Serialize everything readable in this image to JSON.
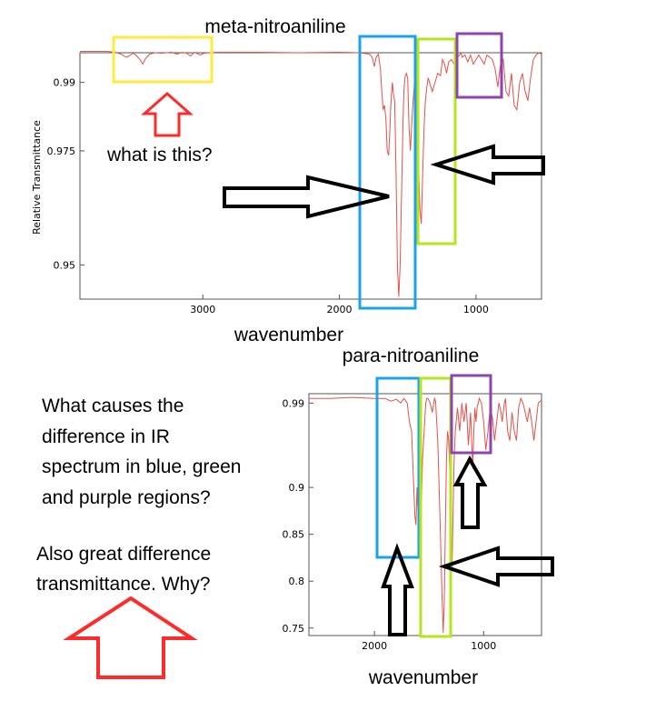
{
  "chart_data": [
    {
      "type": "line",
      "title": "meta-nitroaniline",
      "xlabel": "wavenumber",
      "ylabel": "Relative Transmittance",
      "xlim": [
        3900,
        520
      ],
      "ylim": [
        0.9425,
        0.9965
      ],
      "x_reversed": true,
      "xticks": [
        3000,
        2000,
        1000
      ],
      "yticks": [
        0.95,
        0.975,
        0.99
      ],
      "ytick_labels": [
        "0.95",
        "0.975",
        "0.99"
      ],
      "grid": false,
      "series": [
        {
          "color": "#e8504a",
          "x": [
            3900,
            3700,
            3640,
            3600,
            3560,
            3540,
            3510,
            3490,
            3460,
            3440,
            3420,
            3390,
            3350,
            3300,
            3230,
            3190,
            3150,
            3120,
            3090,
            3060,
            3020,
            2990,
            2900,
            2600,
            2300,
            2000,
            1860,
            1780,
            1760,
            1745,
            1730,
            1715,
            1700,
            1690,
            1680,
            1670,
            1660,
            1650,
            1640,
            1630,
            1625,
            1620,
            1612,
            1605,
            1595,
            1585,
            1575,
            1565,
            1555,
            1545,
            1535,
            1528,
            1520,
            1510,
            1500,
            1490,
            1480,
            1470,
            1460,
            1450,
            1440,
            1430,
            1420,
            1410,
            1400,
            1390,
            1380,
            1370,
            1360,
            1350,
            1340,
            1320,
            1300,
            1280,
            1260,
            1245,
            1230,
            1215,
            1200,
            1180,
            1160,
            1140,
            1120,
            1110,
            1100,
            1080,
            1060,
            1040,
            1020,
            1000,
            980,
            960,
            940,
            920,
            900,
            880,
            860,
            840,
            820,
            800,
            780,
            760,
            740,
            720,
            700,
            680,
            660,
            640,
            620,
            600,
            580,
            560,
            540,
            520
          ],
          "y": [
            0.9968,
            0.9968,
            0.9966,
            0.9962,
            0.9955,
            0.9958,
            0.9964,
            0.996,
            0.995,
            0.994,
            0.9952,
            0.9962,
            0.9965,
            0.9964,
            0.9966,
            0.9962,
            0.9966,
            0.9964,
            0.9958,
            0.9966,
            0.996,
            0.9964,
            0.9966,
            0.9966,
            0.9965,
            0.9966,
            0.9965,
            0.9962,
            0.9955,
            0.9935,
            0.9955,
            0.9962,
            0.993,
            0.988,
            0.984,
            0.985,
            0.982,
            0.975,
            0.974,
            0.98,
            0.984,
            0.987,
            0.99,
            0.9875,
            0.986,
            0.97,
            0.95,
            0.943,
            0.95,
            0.965,
            0.98,
            0.988,
            0.991,
            0.992,
            0.991,
            0.98,
            0.975,
            0.981,
            0.986,
            0.99,
            0.987,
            0.982,
            0.972,
            0.962,
            0.959,
            0.97,
            0.98,
            0.986,
            0.989,
            0.991,
            0.99,
            0.988,
            0.99,
            0.992,
            0.9915,
            0.995,
            0.994,
            0.992,
            0.9945,
            0.995,
            0.994,
            0.9955,
            0.996,
            0.9965,
            0.9955,
            0.996,
            0.9945,
            0.996,
            0.994,
            0.995,
            0.996,
            0.995,
            0.994,
            0.996,
            0.9955,
            0.995,
            0.993,
            0.989,
            0.994,
            0.995,
            0.988,
            0.987,
            0.992,
            0.985,
            0.984,
            0.99,
            0.992,
            0.988,
            0.986,
            0.991,
            0.995,
            0.996,
            0.9965,
            0.9962
          ]
        }
      ]
    },
    {
      "type": "line",
      "title": "para-nitroaniline",
      "xlabel": "wavenumber",
      "ylabel": "",
      "xlim": [
        2600,
        470
      ],
      "ylim": [
        0.742,
        1.0
      ],
      "x_reversed": true,
      "xticks": [
        2000,
        1000
      ],
      "yticks": [
        0.75,
        0.8,
        0.85,
        0.9,
        0.99
      ],
      "ytick_labels": [
        "0.75",
        "0.8",
        "0.85",
        "0.9",
        "0.99"
      ],
      "grid": false,
      "series": [
        {
          "color": "#e8504a",
          "x": [
            2600,
            2400,
            2200,
            2000,
            1900,
            1850,
            1800,
            1760,
            1730,
            1700,
            1680,
            1660,
            1650,
            1640,
            1630,
            1620,
            1610,
            1600,
            1590,
            1580,
            1570,
            1560,
            1550,
            1540,
            1530,
            1520,
            1510,
            1490,
            1470,
            1450,
            1440,
            1420,
            1400,
            1380,
            1370,
            1360,
            1350,
            1340,
            1330,
            1320,
            1310,
            1300,
            1290,
            1280,
            1270,
            1260,
            1240,
            1220,
            1200,
            1180,
            1160,
            1140,
            1120,
            1110,
            1100,
            1090,
            1080,
            1070,
            1060,
            1040,
            1020,
            1000,
            980,
            960,
            940,
            920,
            900,
            880,
            860,
            840,
            830,
            820,
            810,
            800,
            780,
            760,
            740,
            720,
            700,
            680,
            660,
            640,
            620,
            600,
            580,
            560,
            540,
            520,
            500,
            470
          ],
          "y": [
            0.995,
            0.995,
            0.996,
            0.995,
            0.995,
            0.992,
            0.994,
            0.99,
            0.995,
            0.99,
            0.97,
            0.96,
            0.93,
            0.9,
            0.87,
            0.86,
            0.9,
            0.87,
            0.84,
            0.85,
            0.88,
            0.93,
            0.95,
            0.97,
            0.99,
            0.995,
            0.995,
            0.99,
            0.98,
            0.995,
            0.992,
            0.95,
            0.87,
            0.78,
            0.745,
            0.78,
            0.86,
            0.93,
            0.96,
            0.95,
            0.92,
            0.83,
            0.81,
            0.87,
            0.93,
            0.96,
            0.985,
            0.96,
            0.99,
            0.97,
            0.99,
            0.945,
            0.98,
            0.95,
            0.92,
            0.96,
            0.985,
            0.97,
            0.985,
            0.995,
            0.99,
            0.97,
            0.94,
            0.96,
            0.985,
            0.975,
            0.95,
            0.97,
            0.99,
            0.98,
            0.97,
            0.98,
            0.99,
            0.995,
            0.96,
            0.95,
            0.98,
            0.96,
            0.95,
            0.985,
            0.995,
            0.99,
            0.98,
            0.97,
            0.985,
            0.97,
            0.95,
            0.97,
            0.99,
            0.993
          ]
        }
      ]
    }
  ],
  "annotations": {
    "question_top": "what is this?",
    "question_side": "What causes the difference in IR spectrum in blue, green and purple regions?",
    "question_side_lines": [
      "What causes the",
      "difference in IR",
      "spectrum in blue, green",
      "and purple regions?"
    ],
    "question_bottom_lines": [
      "Also great difference",
      "transmittance. Why?"
    ],
    "colors": {
      "yellow": "#ffeb3b",
      "blue": "#1aa3e8",
      "green": "#b5e61d",
      "purple": "#8e44ad",
      "red_arrow": "#ff2a2a",
      "black_arrow": "#000000",
      "trace": "#e8504a"
    }
  }
}
